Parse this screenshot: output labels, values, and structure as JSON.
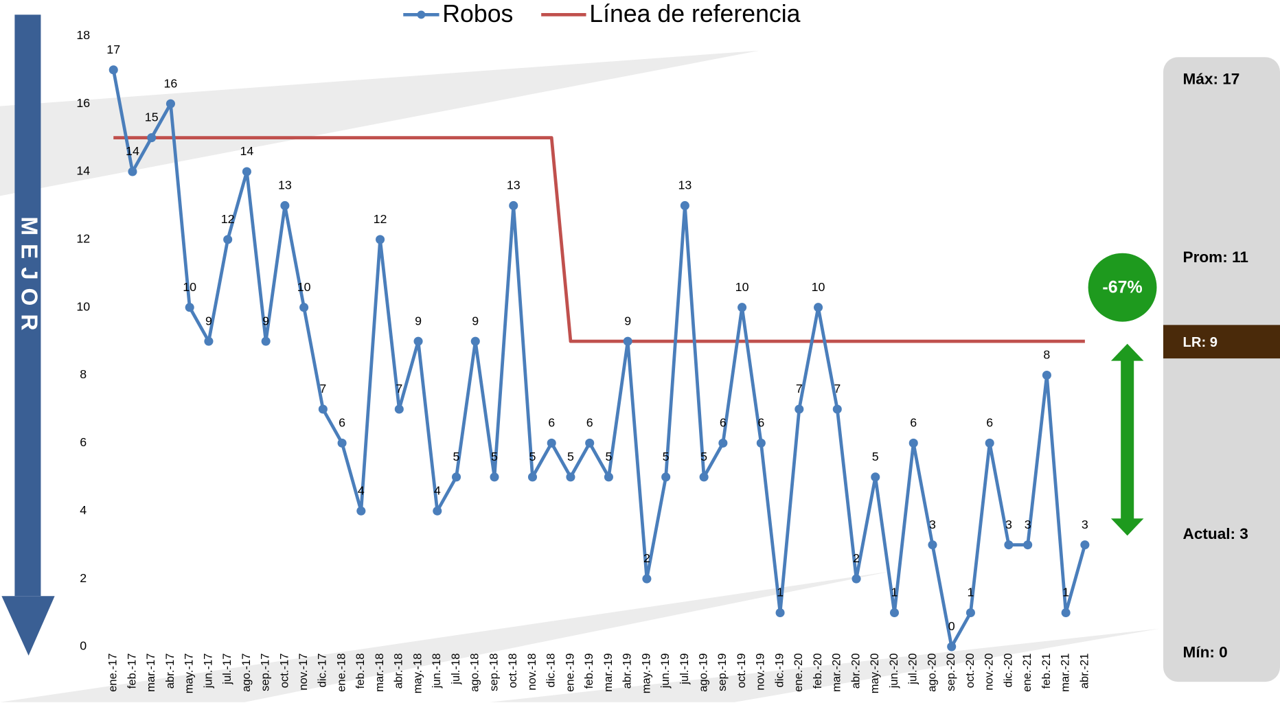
{
  "chart_data": {
    "type": "line",
    "categories": [
      "ene.-17",
      "feb.-17",
      "mar.-17",
      "abr.-17",
      "may.-17",
      "jun.-17",
      "jul.-17",
      "ago.-17",
      "sep.-17",
      "oct.-17",
      "nov.-17",
      "dic.-17",
      "ene.-18",
      "feb.-18",
      "mar.-18",
      "abr.-18",
      "may.-18",
      "jun.-18",
      "jul.-18",
      "ago.-18",
      "sep.-18",
      "oct.-18",
      "nov.-18",
      "dic.-18",
      "ene.-19",
      "feb.-19",
      "mar.-19",
      "abr.-19",
      "may.-19",
      "jun.-19",
      "jul.-19",
      "ago.-19",
      "sep.-19",
      "oct.-19",
      "nov.-19",
      "dic.-19",
      "ene.-20",
      "feb.-20",
      "mar.-20",
      "abr.-20",
      "may.-20",
      "jun.-20",
      "jul.-20",
      "ago.-20",
      "sep.-20",
      "oct.-20",
      "nov.-20",
      "dic.-20",
      "ene.-21",
      "feb.-21",
      "mar.-21",
      "abr.-21"
    ],
    "series": [
      {
        "name": "Robos",
        "color": "#4a7ebb",
        "markers": true,
        "data_labels": true,
        "values": [
          17,
          14,
          15,
          16,
          10,
          9,
          12,
          14,
          9,
          13,
          10,
          7,
          6,
          4,
          12,
          7,
          9,
          4,
          5,
          9,
          5,
          13,
          5,
          6,
          5,
          6,
          5,
          9,
          2,
          5,
          13,
          5,
          6,
          10,
          6,
          1,
          7,
          10,
          7,
          2,
          5,
          1,
          6,
          3,
          0,
          1,
          6,
          3,
          3,
          8,
          1,
          3
        ]
      },
      {
        "name": "Línea de referencia",
        "color": "#c0504d",
        "markers": false,
        "data_labels": false,
        "values": [
          15,
          15,
          15,
          15,
          15,
          15,
          15,
          15,
          15,
          15,
          15,
          15,
          15,
          15,
          15,
          15,
          15,
          15,
          15,
          15,
          15,
          15,
          15,
          15,
          9,
          9,
          9,
          9,
          9,
          9,
          9,
          9,
          9,
          9,
          9,
          9,
          9,
          9,
          9,
          9,
          9,
          9,
          9,
          9,
          9,
          9,
          9,
          9,
          9,
          9,
          9,
          9
        ]
      }
    ],
    "ylim": [
      0,
      18
    ],
    "yticks": [
      0,
      2,
      4,
      6,
      8,
      10,
      12,
      14,
      16,
      18
    ],
    "grid": false,
    "legend": "top",
    "side_arrow_text": "MEJOR",
    "change_badge": "-67%",
    "summary": {
      "max": "Máx:  17",
      "avg": "Prom:  11",
      "reference": "LR: 9",
      "current": "Actual: 3",
      "min": "Mín: 0"
    }
  }
}
